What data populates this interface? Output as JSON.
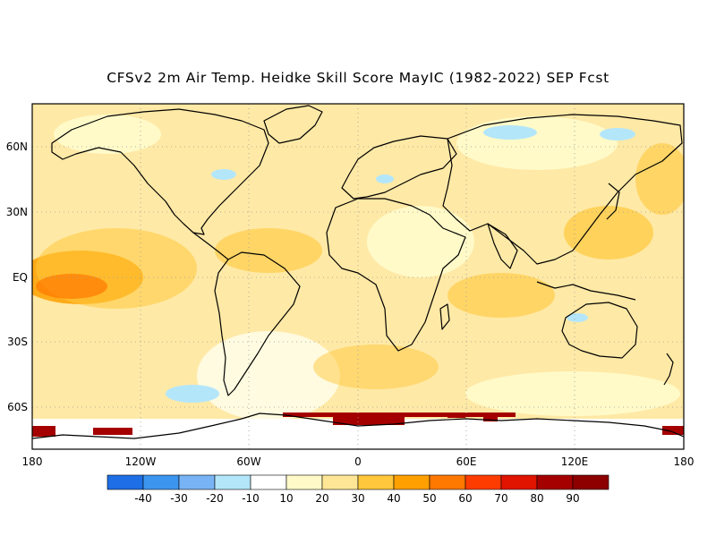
{
  "title": "CFSv2 2m Air Temp. Heidke Skill Score MayIC (1982-2022) SEP Fcst",
  "lat_labels": [
    "60N",
    "30N",
    "EQ",
    "30S",
    "60S"
  ],
  "lon_labels": [
    "180",
    "120W",
    "60W",
    "0",
    "60E",
    "120E",
    "180"
  ],
  "colorbar": {
    "labels": [
      "-40",
      "-30",
      "-20",
      "-10",
      "10",
      "20",
      "30",
      "40",
      "50",
      "60",
      "70",
      "80",
      "90"
    ],
    "colors": [
      "#1e6ee6",
      "#3c96f0",
      "#78b4f5",
      "#b4e6fa",
      "#ffffff",
      "#fffac8",
      "#ffe696",
      "#ffc83c",
      "#ffa000",
      "#ff7800",
      "#ff3c00",
      "#e11400",
      "#a50000",
      "#8c0000"
    ]
  },
  "colors": {
    "land_outline": "#000000",
    "grid": "#9a9a9a",
    "background_skill": "#ffe696"
  }
}
